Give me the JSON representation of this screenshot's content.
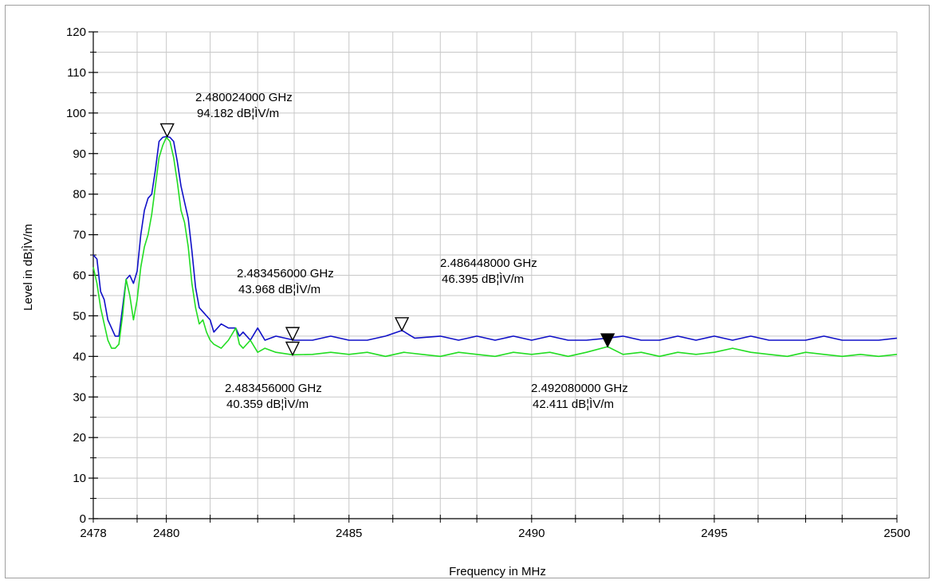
{
  "chart_data": {
    "type": "line",
    "xlabel": "Frequency in MHz",
    "ylabel": "Level in dB¦ÌV/m",
    "xlim": [
      2478,
      2500
    ],
    "ylim": [
      0,
      120
    ],
    "x_ticks": [
      2478,
      2480,
      2485,
      2490,
      2495,
      2500
    ],
    "x_gridlines": [
      2478,
      2479.2,
      2480,
      2481.2,
      2482.5,
      2483.5,
      2485,
      2486.2,
      2487.5,
      2488.5,
      2490,
      2491.2,
      2492.5,
      2493.5,
      2495,
      2496.2,
      2497.5,
      2498.5,
      2500
    ],
    "y_ticks": [
      0,
      10,
      20,
      30,
      40,
      50,
      60,
      70,
      80,
      90,
      100,
      110,
      120
    ],
    "grid": true,
    "series": [
      {
        "color": "#1010c8",
        "points": [
          [
            2478,
            65
          ],
          [
            2478.1,
            64
          ],
          [
            2478.2,
            56
          ],
          [
            2478.3,
            54
          ],
          [
            2478.4,
            49
          ],
          [
            2478.5,
            47
          ],
          [
            2478.6,
            45
          ],
          [
            2478.7,
            45
          ],
          [
            2478.8,
            52
          ],
          [
            2478.9,
            59
          ],
          [
            2479.0,
            60
          ],
          [
            2479.1,
            58
          ],
          [
            2479.2,
            61
          ],
          [
            2479.3,
            70
          ],
          [
            2479.4,
            76
          ],
          [
            2479.5,
            79
          ],
          [
            2479.6,
            80
          ],
          [
            2479.7,
            86
          ],
          [
            2479.8,
            93
          ],
          [
            2479.9,
            94
          ],
          [
            2480.0,
            94.2
          ],
          [
            2480.1,
            94
          ],
          [
            2480.2,
            93
          ],
          [
            2480.3,
            88
          ],
          [
            2480.4,
            82
          ],
          [
            2480.5,
            78
          ],
          [
            2480.6,
            74
          ],
          [
            2480.7,
            66
          ],
          [
            2480.8,
            57
          ],
          [
            2480.9,
            52
          ],
          [
            2481.0,
            51
          ],
          [
            2481.1,
            50
          ],
          [
            2481.2,
            49
          ],
          [
            2481.3,
            46
          ],
          [
            2481.5,
            48
          ],
          [
            2481.7,
            47
          ],
          [
            2481.9,
            47
          ],
          [
            2482.0,
            45
          ],
          [
            2482.1,
            46
          ],
          [
            2482.3,
            44
          ],
          [
            2482.5,
            47
          ],
          [
            2482.7,
            44
          ],
          [
            2483.0,
            45
          ],
          [
            2483.5,
            44
          ],
          [
            2484.0,
            44
          ],
          [
            2484.5,
            45
          ],
          [
            2485.0,
            44
          ],
          [
            2485.5,
            44
          ],
          [
            2486.0,
            45
          ],
          [
            2486.45,
            46.4
          ],
          [
            2486.8,
            44.5
          ],
          [
            2487.5,
            45
          ],
          [
            2488.0,
            44
          ],
          [
            2488.5,
            45
          ],
          [
            2489.0,
            44
          ],
          [
            2489.5,
            45
          ],
          [
            2490.0,
            44
          ],
          [
            2490.5,
            45
          ],
          [
            2491.0,
            44
          ],
          [
            2491.5,
            44
          ],
          [
            2492.08,
            44.5
          ],
          [
            2492.5,
            45
          ],
          [
            2493.0,
            44
          ],
          [
            2493.5,
            44
          ],
          [
            2494.0,
            45
          ],
          [
            2494.5,
            44
          ],
          [
            2495.0,
            45
          ],
          [
            2495.5,
            44
          ],
          [
            2496.0,
            45
          ],
          [
            2496.5,
            44
          ],
          [
            2497.0,
            44
          ],
          [
            2497.5,
            44
          ],
          [
            2498.0,
            45
          ],
          [
            2498.5,
            44
          ],
          [
            2499.0,
            44
          ],
          [
            2499.5,
            44
          ],
          [
            2500,
            44.5
          ]
        ]
      },
      {
        "color": "#22dd22",
        "points": [
          [
            2478,
            62
          ],
          [
            2478.1,
            58
          ],
          [
            2478.2,
            52
          ],
          [
            2478.3,
            48
          ],
          [
            2478.4,
            44
          ],
          [
            2478.5,
            42
          ],
          [
            2478.6,
            42
          ],
          [
            2478.7,
            43
          ],
          [
            2478.8,
            50
          ],
          [
            2478.9,
            59
          ],
          [
            2479.0,
            55
          ],
          [
            2479.1,
            49
          ],
          [
            2479.2,
            54
          ],
          [
            2479.3,
            62
          ],
          [
            2479.4,
            67
          ],
          [
            2479.5,
            70
          ],
          [
            2479.6,
            75
          ],
          [
            2479.7,
            82
          ],
          [
            2479.8,
            89
          ],
          [
            2479.9,
            92
          ],
          [
            2480.0,
            94
          ],
          [
            2480.1,
            93
          ],
          [
            2480.2,
            89
          ],
          [
            2480.3,
            83
          ],
          [
            2480.4,
            76
          ],
          [
            2480.5,
            73
          ],
          [
            2480.6,
            67
          ],
          [
            2480.7,
            58
          ],
          [
            2480.8,
            52
          ],
          [
            2480.9,
            48
          ],
          [
            2481.0,
            49
          ],
          [
            2481.1,
            46
          ],
          [
            2481.2,
            44
          ],
          [
            2481.3,
            43
          ],
          [
            2481.5,
            42
          ],
          [
            2481.7,
            44
          ],
          [
            2481.9,
            47
          ],
          [
            2482.0,
            43
          ],
          [
            2482.1,
            42
          ],
          [
            2482.3,
            44
          ],
          [
            2482.5,
            41
          ],
          [
            2482.7,
            42
          ],
          [
            2483.0,
            41
          ],
          [
            2483.456,
            40.4
          ],
          [
            2484.0,
            40.5
          ],
          [
            2484.5,
            41
          ],
          [
            2485.0,
            40.5
          ],
          [
            2485.5,
            41
          ],
          [
            2486.0,
            40
          ],
          [
            2486.5,
            41
          ],
          [
            2487.0,
            40.5
          ],
          [
            2487.5,
            40
          ],
          [
            2488.0,
            41
          ],
          [
            2488.5,
            40.5
          ],
          [
            2489.0,
            40
          ],
          [
            2489.5,
            41
          ],
          [
            2490.0,
            40.5
          ],
          [
            2490.5,
            41
          ],
          [
            2491.0,
            40
          ],
          [
            2491.5,
            41
          ],
          [
            2492.08,
            42.4
          ],
          [
            2492.5,
            40.5
          ],
          [
            2493.0,
            41
          ],
          [
            2493.5,
            40
          ],
          [
            2494.0,
            41
          ],
          [
            2494.5,
            40.5
          ],
          [
            2495.0,
            41
          ],
          [
            2495.5,
            42
          ],
          [
            2496.0,
            41
          ],
          [
            2496.5,
            40.5
          ],
          [
            2497.0,
            40
          ],
          [
            2497.5,
            41
          ],
          [
            2498.0,
            40.5
          ],
          [
            2498.5,
            40
          ],
          [
            2499.0,
            40.5
          ],
          [
            2499.5,
            40
          ],
          [
            2500,
            40.5
          ]
        ]
      }
    ],
    "markers": [
      {
        "x": 2480.024,
        "y": 94.182,
        "filled": false,
        "freq_text": "2.480024000 GHz",
        "level_text": "94.182 dB¦ÌV/m"
      },
      {
        "x": 2483.456,
        "y": 43.968,
        "filled": false,
        "freq_text": "2.483456000 GHz",
        "level_text": "43.968 dB¦ÌV/m"
      },
      {
        "x": 2486.448,
        "y": 46.395,
        "filled": false,
        "freq_text": "2.486448000 GHz",
        "level_text": "46.395 dB¦ÌV/m"
      },
      {
        "x": 2483.456,
        "y": 40.359,
        "filled": false,
        "freq_text": "2.483456000 GHz",
        "level_text": "40.359 dB¦ÌV/m"
      },
      {
        "x": 2492.08,
        "y": 42.411,
        "filled": true,
        "freq_text": "2.492080000 GHz",
        "level_text": "42.411 dB¦ÌV/m"
      }
    ]
  }
}
